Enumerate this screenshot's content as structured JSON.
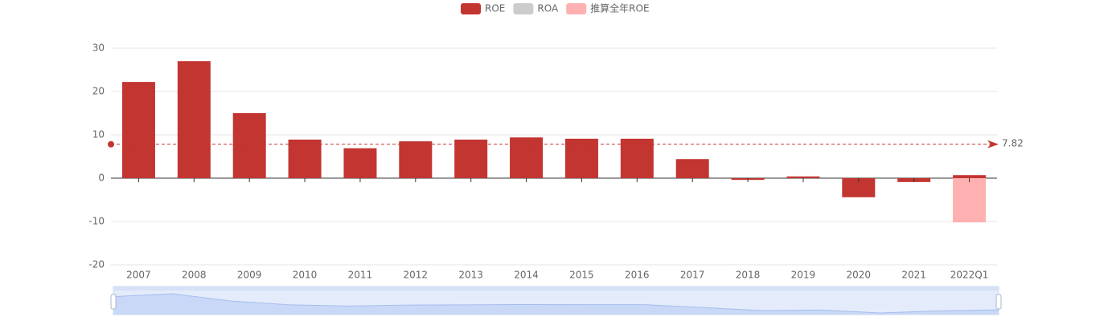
{
  "chart_data": {
    "type": "bar",
    "categories": [
      "2007",
      "2008",
      "2009",
      "2010",
      "2011",
      "2012",
      "2013",
      "2014",
      "2015",
      "2016",
      "2017",
      "2018",
      "2019",
      "2020",
      "2021",
      "2022Q1"
    ],
    "series": [
      {
        "name": "ROE",
        "color": "#c23531",
        "values": [
          22.2,
          27.0,
          15.0,
          8.9,
          6.9,
          8.5,
          8.9,
          9.4,
          9.1,
          9.1,
          4.4,
          -0.4,
          0.4,
          -4.4,
          -0.9,
          0.7
        ]
      },
      {
        "name": "推算全年ROE",
        "color": "#ffb0b0",
        "values": [
          null,
          null,
          null,
          null,
          null,
          null,
          null,
          null,
          null,
          null,
          null,
          null,
          null,
          null,
          null,
          -10.2
        ]
      }
    ],
    "inactive_legend": [
      {
        "name": "ROA",
        "color": "#cccccc"
      }
    ],
    "mark_line": {
      "value": 7.82,
      "label": "7.82",
      "color": "#c23531"
    },
    "ylim": [
      -20,
      30
    ],
    "yticks": [
      -20,
      -10,
      0,
      10,
      20,
      30
    ],
    "grid": true
  }
}
